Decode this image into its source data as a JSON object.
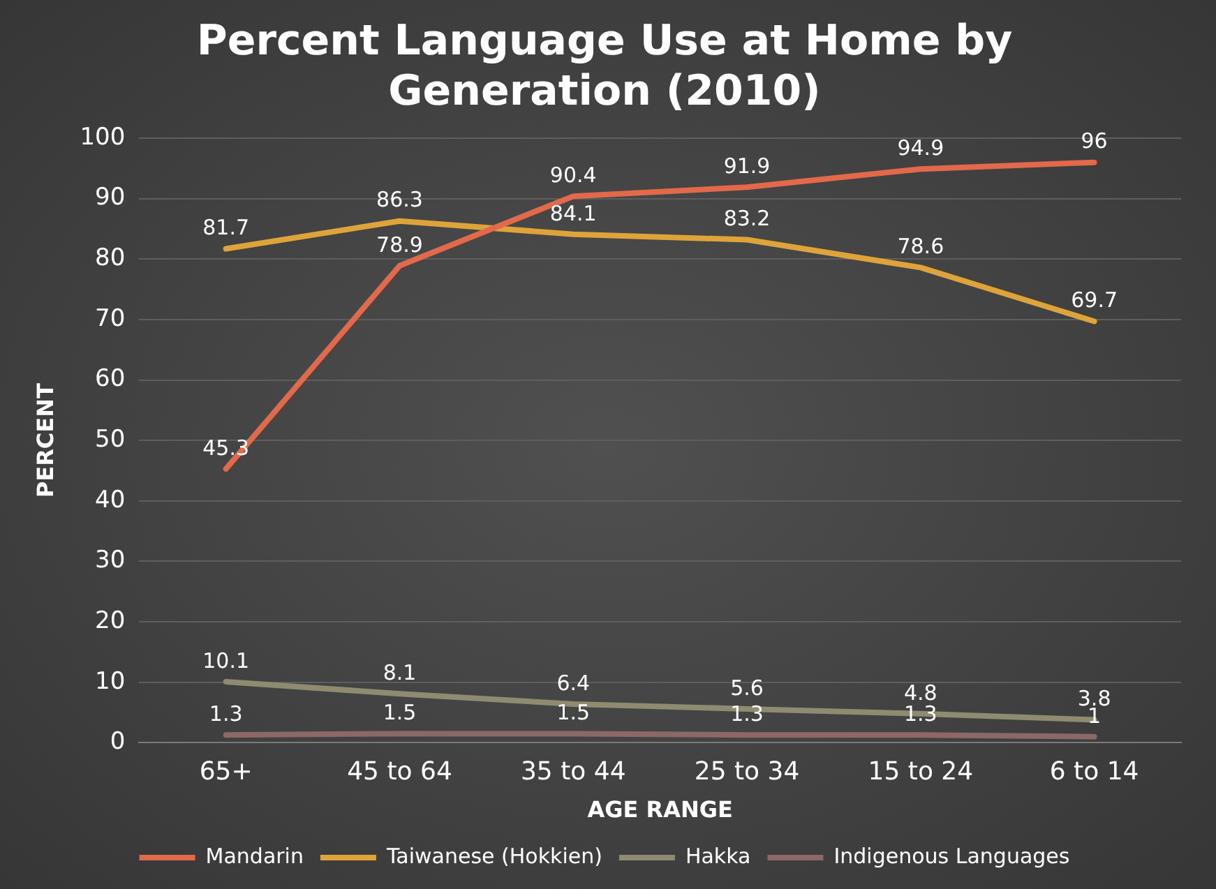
{
  "chart_data": {
    "type": "line",
    "title": "Percent Language Use at Home by Generation (2010)",
    "xlabel": "AGE RANGE",
    "ylabel": "PERCENT",
    "categories": [
      "65+",
      "45 to 64",
      "35 to 44",
      "25 to 34",
      "15 to 24",
      "6 to 14"
    ],
    "series": [
      {
        "name": "Mandarin",
        "color": "#e2694a",
        "values": [
          45.3,
          78.9,
          90.4,
          91.9,
          94.9,
          96
        ]
      },
      {
        "name": "Taiwanese (Hokkien)",
        "color": "#dea43a",
        "values": [
          81.7,
          86.3,
          84.1,
          83.2,
          78.6,
          69.7
        ]
      },
      {
        "name": "Hakka",
        "color": "#8e8b70",
        "values": [
          10.1,
          8.1,
          6.4,
          5.6,
          4.8,
          3.8
        ]
      },
      {
        "name": "Indigenous Languages",
        "color": "#8c6868",
        "values": [
          1.3,
          1.5,
          1.5,
          1.3,
          1.3,
          1
        ]
      }
    ],
    "ylim": [
      0,
      100
    ],
    "yticks": [
      0,
      10,
      20,
      30,
      40,
      50,
      60,
      70,
      80,
      90,
      100
    ],
    "grid": "y",
    "legend": "bottom",
    "marker": "none",
    "line_style": "solid",
    "data_labels": true
  }
}
